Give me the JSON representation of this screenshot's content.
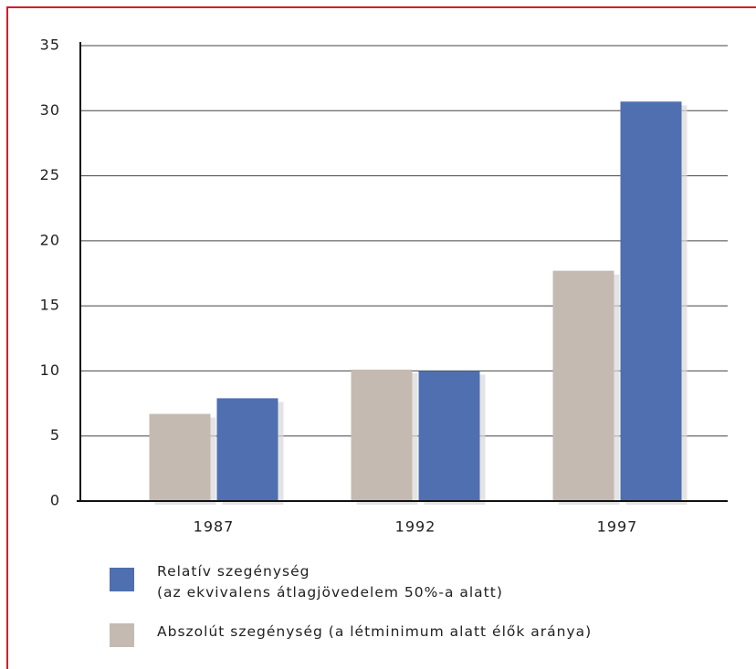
{
  "chart_data": {
    "type": "bar",
    "categories": [
      "1987",
      "1992",
      "1997"
    ],
    "series": [
      {
        "name": "Abszolút szegénység (a létminimum alatt élők aránya)",
        "color": "#c4bab1",
        "values": [
          6.7,
          10.1,
          17.7
        ]
      },
      {
        "name": "Relatív szegénység\n(az ekvivalens átlagjövedelem 50%-a alatt)",
        "color": "#4f6fb0",
        "values": [
          7.9,
          10.0,
          30.7
        ]
      }
    ],
    "ylim": [
      0,
      35
    ],
    "yticks": [
      0,
      5,
      10,
      15,
      20,
      25,
      30,
      35
    ],
    "grid": true
  }
}
